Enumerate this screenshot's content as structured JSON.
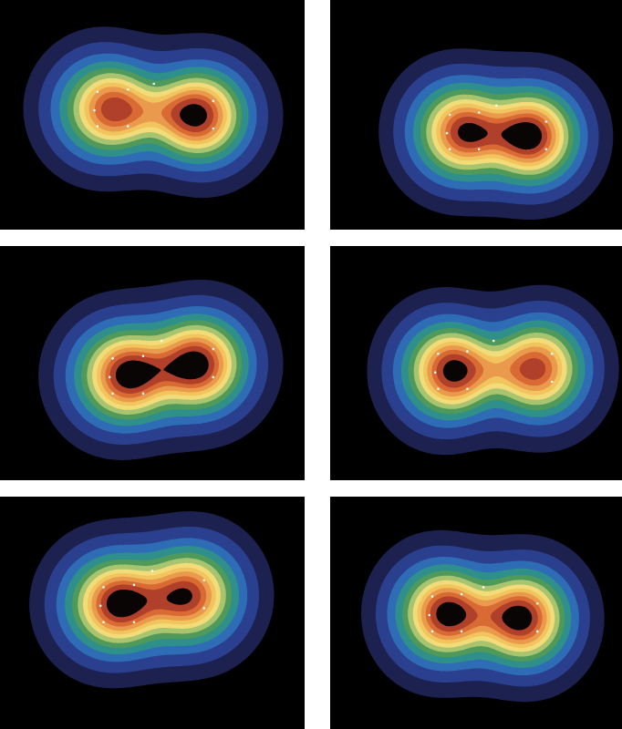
{
  "chart_data": {
    "type": "contour",
    "tick_labels": false,
    "xlim": [
      0,
      100
    ],
    "ylim": [
      0,
      100
    ],
    "levels": [
      0.05,
      0.1,
      0.16,
      0.22,
      0.29,
      0.36,
      0.44,
      0.52,
      0.6,
      0.7,
      0.8,
      0.92
    ],
    "colors": [
      "#1c2150",
      "#2b3f8f",
      "#2e6cb5",
      "#2f8f8a",
      "#4f9a5a",
      "#a9c46f",
      "#f2dc7a",
      "#f1c45e",
      "#e99a4c",
      "#d96a33",
      "#b0402a",
      "#0a0505"
    ],
    "panels": [
      {
        "peaks": [
          {
            "x": 33,
            "y": 47,
            "height": 0.35,
            "sx": 13,
            "sy": 18
          },
          {
            "x": 67,
            "y": 50,
            "height": 0.35,
            "sx": 13,
            "sy": 18
          },
          {
            "x": 37,
            "y": 47,
            "height": 0.5,
            "sx": 7,
            "sy": 9
          },
          {
            "x": 64,
            "y": 50,
            "height": 0.62,
            "sx": 7,
            "sy": 9
          },
          {
            "x": 50.5,
            "y": 48.5,
            "height": 0.2,
            "sx": 8,
            "sy": 6
          }
        ],
        "points": [
          {
            "x": 32,
            "y": 40
          },
          {
            "x": 31,
            "y": 48
          },
          {
            "x": 32,
            "y": 55
          },
          {
            "x": 42,
            "y": 39
          },
          {
            "x": 42,
            "y": 55
          },
          {
            "x": 70,
            "y": 44
          },
          {
            "x": 70,
            "y": 56
          },
          {
            "x": 50.5,
            "y": 36.5
          }
        ]
      },
      {
        "peaks": [
          {
            "x": 42,
            "y": 57,
            "height": 0.35,
            "sx": 13,
            "sy": 18
          },
          {
            "x": 71,
            "y": 59,
            "height": 0.35,
            "sx": 13,
            "sy": 18
          },
          {
            "x": 46,
            "y": 57,
            "height": 0.52,
            "sx": 7,
            "sy": 9
          },
          {
            "x": 68,
            "y": 59,
            "height": 0.62,
            "sx": 7,
            "sy": 9
          },
          {
            "x": 57,
            "y": 58,
            "height": 0.2,
            "sx": 8,
            "sy": 6
          }
        ],
        "points": [
          {
            "x": 41,
            "y": 50
          },
          {
            "x": 40,
            "y": 58
          },
          {
            "x": 41,
            "y": 65
          },
          {
            "x": 51,
            "y": 49
          },
          {
            "x": 51,
            "y": 65
          },
          {
            "x": 74,
            "y": 53
          },
          {
            "x": 74,
            "y": 65
          },
          {
            "x": 57,
            "y": 46
          }
        ]
      },
      {
        "peaks": [
          {
            "x": 38,
            "y": 55,
            "height": 0.35,
            "sx": 13,
            "sy": 18
          },
          {
            "x": 67,
            "y": 50,
            "height": 0.35,
            "sx": 13,
            "sy": 18
          },
          {
            "x": 42,
            "y": 55,
            "height": 0.62,
            "sx": 7,
            "sy": 9
          },
          {
            "x": 64,
            "y": 50,
            "height": 0.62,
            "sx": 7,
            "sy": 9
          },
          {
            "x": 53,
            "y": 52.5,
            "height": 0.2,
            "sx": 8,
            "sy": 6
          }
        ],
        "points": [
          {
            "x": 37,
            "y": 48
          },
          {
            "x": 36,
            "y": 56
          },
          {
            "x": 37,
            "y": 63
          },
          {
            "x": 47,
            "y": 47
          },
          {
            "x": 47,
            "y": 63
          },
          {
            "x": 70,
            "y": 44
          },
          {
            "x": 70,
            "y": 56
          },
          {
            "x": 53,
            "y": 40.5
          }
        ]
      },
      {
        "peaks": [
          {
            "x": 38,
            "y": 53,
            "height": 0.35,
            "sx": 13,
            "sy": 18
          },
          {
            "x": 73,
            "y": 52,
            "height": 0.35,
            "sx": 13,
            "sy": 18
          },
          {
            "x": 42,
            "y": 53,
            "height": 0.62,
            "sx": 7,
            "sy": 9
          },
          {
            "x": 70,
            "y": 52,
            "height": 0.48,
            "sx": 7,
            "sy": 9
          },
          {
            "x": 56,
            "y": 52.5,
            "height": 0.2,
            "sx": 8,
            "sy": 6
          }
        ],
        "points": [
          {
            "x": 37,
            "y": 46
          },
          {
            "x": 36,
            "y": 54
          },
          {
            "x": 37,
            "y": 61
          },
          {
            "x": 47,
            "y": 45
          },
          {
            "x": 47,
            "y": 61
          },
          {
            "x": 76,
            "y": 46
          },
          {
            "x": 76,
            "y": 58
          },
          {
            "x": 56,
            "y": 40.5
          }
        ]
      },
      {
        "peaks": [
          {
            "x": 35,
            "y": 46,
            "height": 0.35,
            "sx": 13,
            "sy": 18
          },
          {
            "x": 64,
            "y": 42,
            "height": 0.35,
            "sx": 13,
            "sy": 18
          },
          {
            "x": 39,
            "y": 46,
            "height": 0.62,
            "sx": 7,
            "sy": 9
          },
          {
            "x": 61,
            "y": 42,
            "height": 0.5,
            "sx": 7,
            "sy": 9
          },
          {
            "x": 50,
            "y": 44,
            "height": 0.2,
            "sx": 8,
            "sy": 6
          }
        ],
        "points": [
          {
            "x": 34,
            "y": 39
          },
          {
            "x": 33,
            "y": 47
          },
          {
            "x": 34,
            "y": 54
          },
          {
            "x": 44,
            "y": 38
          },
          {
            "x": 44,
            "y": 54
          },
          {
            "x": 67,
            "y": 36
          },
          {
            "x": 67,
            "y": 48
          },
          {
            "x": 50,
            "y": 32
          }
        ]
      },
      {
        "peaks": [
          {
            "x": 36,
            "y": 50,
            "height": 0.35,
            "sx": 13,
            "sy": 18
          },
          {
            "x": 68,
            "y": 52,
            "height": 0.35,
            "sx": 13,
            "sy": 18
          },
          {
            "x": 40,
            "y": 50,
            "height": 0.62,
            "sx": 7,
            "sy": 9
          },
          {
            "x": 65,
            "y": 52,
            "height": 0.62,
            "sx": 7,
            "sy": 9
          },
          {
            "x": 52.5,
            "y": 51,
            "height": 0.2,
            "sx": 8,
            "sy": 6
          }
        ],
        "points": [
          {
            "x": 35,
            "y": 43
          },
          {
            "x": 34,
            "y": 51
          },
          {
            "x": 35,
            "y": 58
          },
          {
            "x": 45,
            "y": 42
          },
          {
            "x": 45,
            "y": 58
          },
          {
            "x": 71,
            "y": 46
          },
          {
            "x": 71,
            "y": 58
          },
          {
            "x": 52.5,
            "y": 39
          }
        ]
      }
    ]
  }
}
